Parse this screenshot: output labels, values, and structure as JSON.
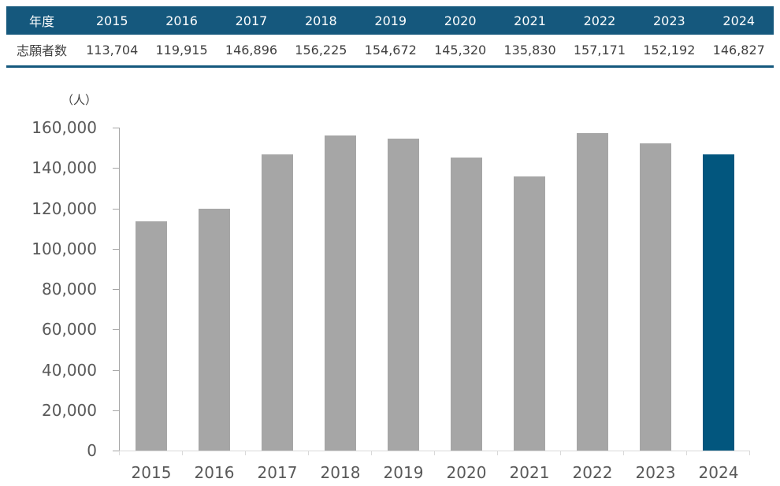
{
  "colors": {
    "table_header_bg": "#15587D",
    "table_header_text": "#FFFFFF",
    "table_text": "#404040",
    "table_border": "#15587D",
    "bar_default": "#A6A6A6",
    "bar_highlight": "#02567E",
    "value_axis": "#A6A6A6",
    "category_axis": "#D9D9D9",
    "tick_label": "#595959",
    "x_label": "#595959",
    "unit_label": "#404040"
  },
  "table": {
    "header_label": "年度",
    "row_label": "志願者数",
    "years": [
      "2015",
      "2016",
      "2017",
      "2018",
      "2019",
      "2020",
      "2021",
      "2022",
      "2023",
      "2024"
    ],
    "values": [
      "113,704",
      "119,915",
      "146,896",
      "156,225",
      "154,672",
      "145,320",
      "135,830",
      "157,171",
      "152,192",
      "146,827"
    ]
  },
  "chart_data": {
    "type": "bar",
    "title": "",
    "unit_label": "（人）",
    "categories": [
      "2015",
      "2016",
      "2017",
      "2018",
      "2019",
      "2020",
      "2021",
      "2022",
      "2023",
      "2024"
    ],
    "values": [
      113704,
      119915,
      146896,
      156225,
      154672,
      145320,
      135830,
      157171,
      152192,
      146827
    ],
    "xlabel": "",
    "ylabel": "（人）",
    "ylim": [
      0,
      160000
    ],
    "ytick_step": 20000,
    "ytick_labels": [
      "0",
      "20,000",
      "40,000",
      "60,000",
      "80,000",
      "100,000",
      "120,000",
      "140,000",
      "160,000"
    ],
    "highlight_index": 9,
    "grid": false,
    "legend": "none"
  }
}
